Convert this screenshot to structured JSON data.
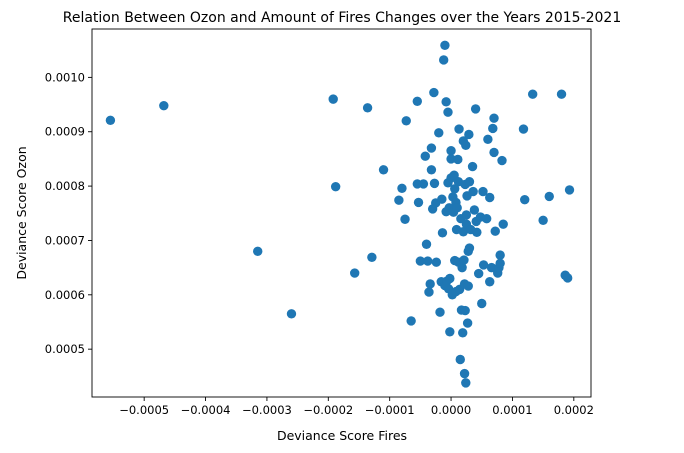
{
  "chart_data": {
    "type": "scatter",
    "title": "Relation Between Ozon and Amount of Fires Changes over the Years 2015-2021",
    "xlabel": "Deviance Score Fires",
    "ylabel": "Deviance Score Ozon",
    "xlim": [
      -0.000585,
      0.000228
    ],
    "ylim": [
      0.000412,
      0.001089
    ],
    "xticks": [
      -0.0005,
      -0.0004,
      -0.0003,
      -0.0002,
      -0.0001,
      0.0,
      0.0001,
      0.0002
    ],
    "xtick_labels": [
      "−0.0005",
      "−0.0004",
      "−0.0003",
      "−0.0002",
      "−0.0001",
      "0.0000",
      "0.0001",
      "0.0002"
    ],
    "yticks": [
      0.0005,
      0.0006,
      0.0007,
      0.0008,
      0.0009,
      0.001
    ],
    "ytick_labels": [
      "0.0005",
      "0.0006",
      "0.0007",
      "0.0008",
      "0.0009",
      "0.0010"
    ],
    "grid": false,
    "marker_color": "#1f77b4",
    "points": [
      [
        -0.000555,
        0.000921
      ],
      [
        -0.000468,
        0.000948
      ],
      [
        -0.000315,
        0.00068
      ],
      [
        -0.00026,
        0.000565
      ],
      [
        -0.000192,
        0.00096
      ],
      [
        -0.000188,
        0.000799
      ],
      [
        -0.000157,
        0.00064
      ],
      [
        -0.000136,
        0.000944
      ],
      [
        -0.000129,
        0.000669
      ],
      [
        -0.00011,
        0.00083
      ],
      [
        -8.5e-05,
        0.000774
      ],
      [
        -8e-05,
        0.000796
      ],
      [
        -7.5e-05,
        0.000739
      ],
      [
        -7.3e-05,
        0.00092
      ],
      [
        -6.5e-05,
        0.000552
      ],
      [
        -5.5e-05,
        0.000956
      ],
      [
        -5.5e-05,
        0.000804
      ],
      [
        -5.3e-05,
        0.00077
      ],
      [
        -5e-05,
        0.000662
      ],
      [
        -4.5e-05,
        0.000804
      ],
      [
        -4.2e-05,
        0.000855
      ],
      [
        -4e-05,
        0.000693
      ],
      [
        -3.8e-05,
        0.000662
      ],
      [
        -3.6e-05,
        0.000605
      ],
      [
        -3.4e-05,
        0.00062
      ],
      [
        -3.2e-05,
        0.00087
      ],
      [
        -3.2e-05,
        0.00083
      ],
      [
        -3e-05,
        0.000758
      ],
      [
        -2.8e-05,
        0.000972
      ],
      [
        -2.7e-05,
        0.000805
      ],
      [
        -2.5e-05,
        0.000769
      ],
      [
        -2.4e-05,
        0.00066
      ],
      [
        -2e-05,
        0.000898
      ],
      [
        -1.8e-05,
        0.000568
      ],
      [
        -1.6e-05,
        0.000624
      ],
      [
        -1.5e-05,
        0.000776
      ],
      [
        -1.4e-05,
        0.000714
      ],
      [
        -1.2e-05,
        0.001032
      ],
      [
        -1e-05,
        0.001059
      ],
      [
        -1e-05,
        0.000617
      ],
      [
        -8e-06,
        0.000955
      ],
      [
        -8e-06,
        0.000753
      ],
      [
        -7e-06,
        0.000625
      ],
      [
        -5e-06,
        0.000936
      ],
      [
        -5e-06,
        0.000806
      ],
      [
        -4e-06,
        0.000611
      ],
      [
        -3e-06,
        0.00076
      ],
      [
        -2e-06,
        0.000532
      ],
      [
        -2e-06,
        0.00063
      ],
      [
        0.0,
        0.000865
      ],
      [
        0.0,
        0.00085
      ],
      [
        0.0,
        0.000815
      ],
      [
        2e-06,
        0.0006
      ],
      [
        3e-06,
        0.00078
      ],
      [
        4e-06,
        0.000752
      ],
      [
        5e-06,
        0.00082
      ],
      [
        6e-06,
        0.000795
      ],
      [
        6e-06,
        0.000663
      ],
      [
        8e-06,
        0.000606
      ],
      [
        8e-06,
        0.00077
      ],
      [
        9e-06,
        0.00072
      ],
      [
        1e-05,
        0.00076
      ],
      [
        1.1e-05,
        0.000849
      ],
      [
        1.2e-05,
        0.000808
      ],
      [
        1.2e-05,
        0.00066
      ],
      [
        1.3e-05,
        0.000905
      ],
      [
        1.4e-05,
        0.00061
      ],
      [
        1.5e-05,
        0.000481
      ],
      [
        1.6e-05,
        0.00074
      ],
      [
        1.7e-05,
        0.000572
      ],
      [
        1.8e-05,
        0.00065
      ],
      [
        1.9e-05,
        0.00053
      ],
      [
        2e-05,
        0.000883
      ],
      [
        2e-05,
        0.000716
      ],
      [
        2.1e-05,
        0.000664
      ],
      [
        2.2e-05,
        0.000455
      ],
      [
        2.2e-05,
        0.00062
      ],
      [
        2.3e-05,
        0.000803
      ],
      [
        2.3e-05,
        0.000571
      ],
      [
        2.4e-05,
        0.000438
      ],
      [
        2.4e-05,
        0.000875
      ],
      [
        2.5e-05,
        0.000747
      ],
      [
        2.5e-05,
        0.00073
      ],
      [
        2.6e-05,
        0.000782
      ],
      [
        2.7e-05,
        0.000548
      ],
      [
        2.8e-05,
        0.00068
      ],
      [
        2.8e-05,
        0.000616
      ],
      [
        2.9e-05,
        0.000895
      ],
      [
        3e-05,
        0.000808
      ],
      [
        3e-05,
        0.000686
      ],
      [
        3.2e-05,
        0.00072
      ],
      [
        3.5e-05,
        0.000836
      ],
      [
        3.6e-05,
        0.00079
      ],
      [
        3.8e-05,
        0.000756
      ],
      [
        4e-05,
        0.000942
      ],
      [
        4.1e-05,
        0.000735
      ],
      [
        4.2e-05,
        0.000715
      ],
      [
        4.5e-05,
        0.000639
      ],
      [
        4.8e-05,
        0.000743
      ],
      [
        5e-05,
        0.000584
      ],
      [
        5.2e-05,
        0.00079
      ],
      [
        5.3e-05,
        0.000655
      ],
      [
        5.8e-05,
        0.00074
      ],
      [
        6e-05,
        0.000886
      ],
      [
        6.3e-05,
        0.000779
      ],
      [
        6.3e-05,
        0.000624
      ],
      [
        6.6e-05,
        0.00065
      ],
      [
        6.8e-05,
        0.000906
      ],
      [
        7e-05,
        0.000925
      ],
      [
        7e-05,
        0.000862
      ],
      [
        7.2e-05,
        0.000717
      ],
      [
        7.6e-05,
        0.00064
      ],
      [
        7.8e-05,
        0.00065
      ],
      [
        8e-05,
        0.000673
      ],
      [
        8e-05,
        0.000658
      ],
      [
        8.3e-05,
        0.000847
      ],
      [
        8.5e-05,
        0.00073
      ],
      [
        0.000118,
        0.000905
      ],
      [
        0.00012,
        0.000775
      ],
      [
        0.000133,
        0.000969
      ],
      [
        0.00015,
        0.000737
      ],
      [
        0.00016,
        0.000781
      ],
      [
        0.00018,
        0.000969
      ],
      [
        0.000186,
        0.000636
      ],
      [
        0.00019,
        0.000631
      ],
      [
        0.000193,
        0.000793
      ]
    ]
  }
}
